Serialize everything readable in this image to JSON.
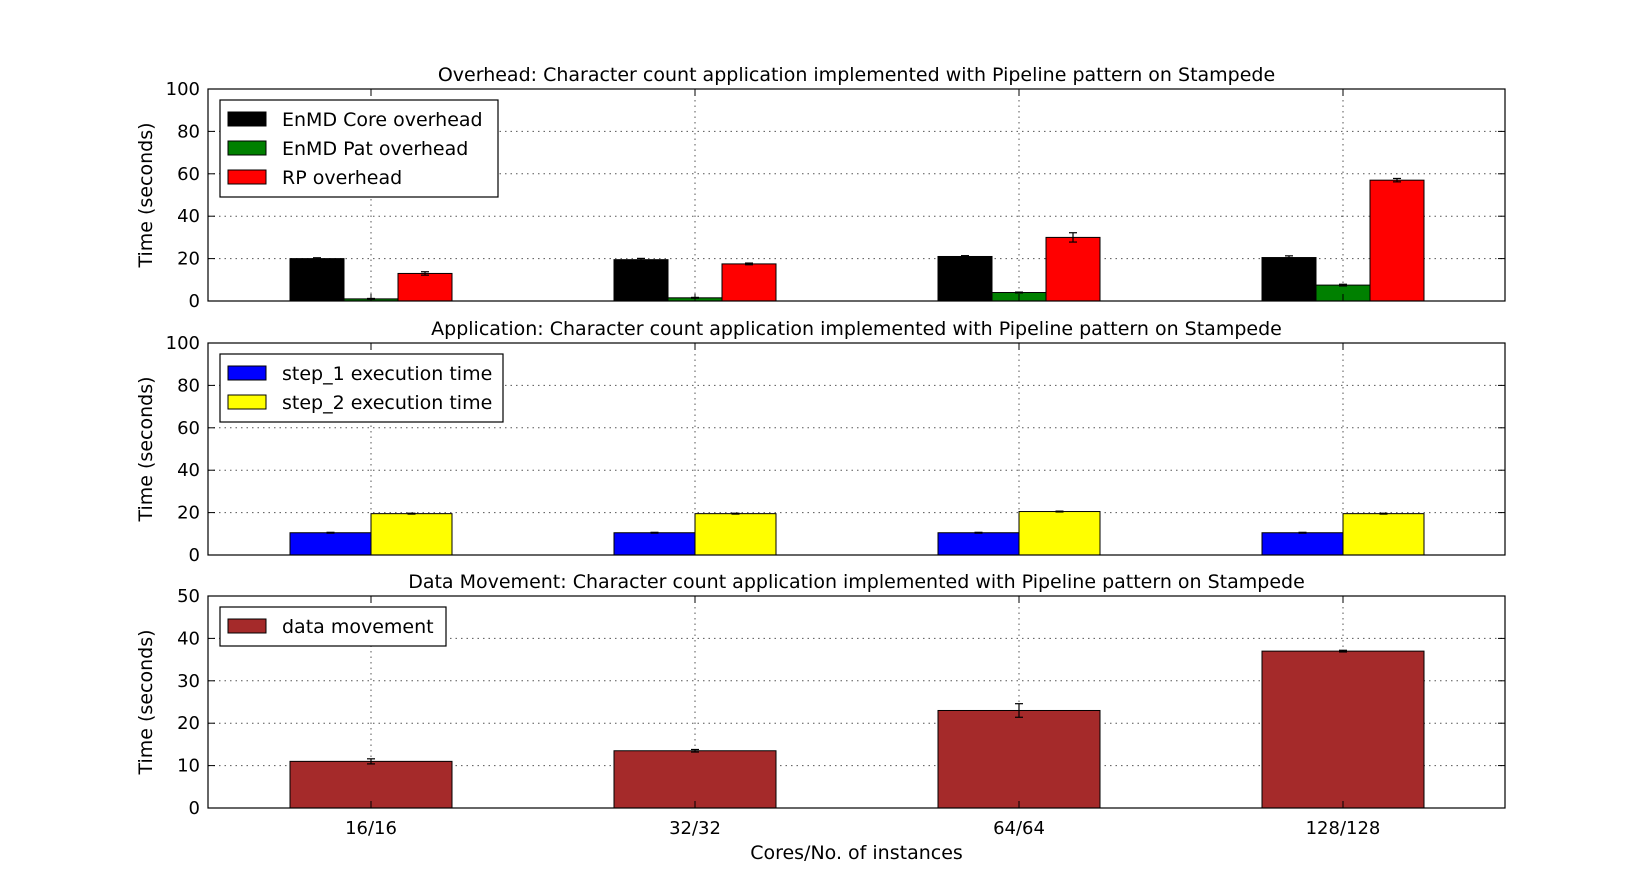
{
  "chart_data": [
    {
      "type": "bar",
      "title": "Overhead: Character count application implemented with Pipeline pattern on Stampede",
      "xlabel": "",
      "ylabel": "Time (seconds)",
      "ylim": [
        0,
        100
      ],
      "yticks": [
        0,
        20,
        40,
        60,
        80,
        100
      ],
      "categories": [
        "16/16",
        "32/32",
        "64/64",
        "128/128"
      ],
      "grid": true,
      "legend_position": "top-left",
      "series": [
        {
          "name": "EnMD Core overhead",
          "color": "#000000",
          "values": [
            20,
            19.5,
            21,
            20.5
          ],
          "errors": [
            0.4,
            0.6,
            0.4,
            0.8
          ]
        },
        {
          "name": "EnMD Pat overhead",
          "color": "#008000",
          "values": [
            1,
            1.5,
            4,
            7.5
          ],
          "errors": [
            0.2,
            0.2,
            0.2,
            0.4
          ]
        },
        {
          "name": "RP overhead",
          "color": "#ff0000",
          "values": [
            13,
            17.5,
            30,
            57
          ],
          "errors": [
            0.8,
            0.4,
            2.2,
            0.8
          ]
        }
      ]
    },
    {
      "type": "bar",
      "title": "Application: Character count application implemented with Pipeline pattern on Stampede",
      "xlabel": "",
      "ylabel": "Time (seconds)",
      "ylim": [
        0,
        100
      ],
      "yticks": [
        0,
        20,
        40,
        60,
        80,
        100
      ],
      "categories": [
        "16/16",
        "32/32",
        "64/64",
        "128/128"
      ],
      "grid": true,
      "legend_position": "top-left",
      "series": [
        {
          "name": "step_1 execution time",
          "color": "#0000ff",
          "values": [
            10.5,
            10.5,
            10.5,
            10.5
          ],
          "errors": [
            0.2,
            0.2,
            0.2,
            0.2
          ]
        },
        {
          "name": "step_2 execution time",
          "color": "#ffff00",
          "values": [
            19.5,
            19.5,
            20.5,
            19.5
          ],
          "errors": [
            0.2,
            0.2,
            0.2,
            0.2
          ]
        }
      ]
    },
    {
      "type": "bar",
      "title": "Data Movement: Character count application implemented with Pipeline pattern on Stampede",
      "xlabel": "Cores/No. of instances",
      "ylabel": "Time (seconds)",
      "ylim": [
        0,
        50
      ],
      "yticks": [
        0,
        10,
        20,
        30,
        40,
        50
      ],
      "categories": [
        "16/16",
        "32/32",
        "64/64",
        "128/128"
      ],
      "grid": true,
      "legend_position": "top-left",
      "series": [
        {
          "name": "data movement",
          "color": "#a52a2a",
          "values": [
            11,
            13.5,
            23,
            37
          ],
          "errors": [
            0.6,
            0.3,
            1.6,
            0.2
          ]
        }
      ]
    }
  ]
}
